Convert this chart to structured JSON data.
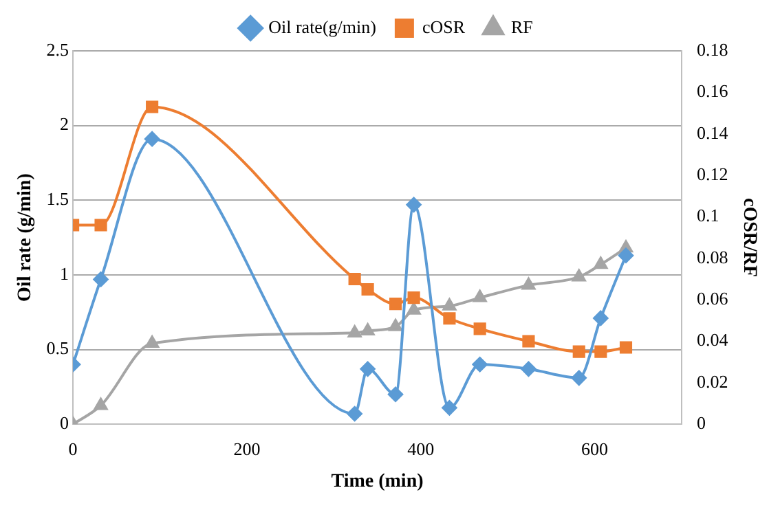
{
  "chart_data": {
    "type": "line",
    "xlabel": "Time (min)",
    "ylabel": "Oil rate (g/min)",
    "y2label": "cOSR/RF",
    "x": [
      0,
      32,
      91,
      324,
      339,
      371,
      392,
      433,
      468,
      524,
      582,
      607,
      636
    ],
    "series": [
      {
        "name": "Oil rate(g/min)",
        "color": "#5b9bd5",
        "marker": "diamond",
        "values": [
          0.4,
          0.97,
          1.91,
          0.07,
          0.37,
          0.2,
          1.47,
          0.11,
          0.4,
          0.37,
          0.31,
          0.71,
          1.13
        ]
      },
      {
        "name": "cOSR",
        "color": "#ed7d31",
        "marker": "square",
        "axis": "y2",
        "values": [
          0.096,
          0.096,
          0.153,
          0.07,
          0.065,
          0.058,
          0.061,
          0.051,
          0.046,
          0.04,
          0.035,
          0.035,
          0.037
        ]
      },
      {
        "name": "RF",
        "color": "#a5a5a5",
        "marker": "triangle",
        "axis": "y2",
        "values": [
          0,
          0.009,
          0.039,
          0.044,
          0.045,
          0.047,
          0.055,
          0.057,
          0.061,
          0.067,
          0.071,
          0.077,
          0.085
        ]
      }
    ],
    "xlim": [
      0,
      700
    ],
    "xticks": [
      0,
      200,
      400,
      600
    ],
    "ylim": [
      0,
      2.5
    ],
    "yticks": [
      0,
      0.5,
      1,
      1.5,
      2,
      2.5
    ],
    "y2lim": [
      0,
      0.18
    ],
    "y2ticks": [
      0,
      0.02,
      0.04,
      0.06,
      0.08,
      0.1,
      0.12,
      0.14,
      0.16,
      0.18
    ],
    "grid": "y",
    "legend": "top"
  }
}
